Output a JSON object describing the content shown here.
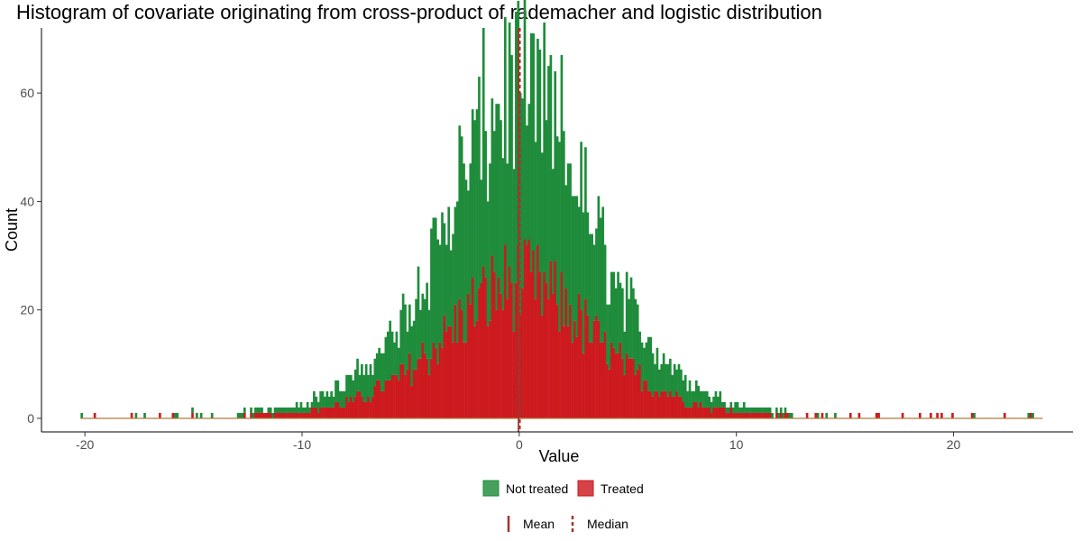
{
  "chart_data": {
    "type": "histogram",
    "title": "Histogram of covariate originating from cross-product of rademacher and logistic distribution",
    "xlabel": "Value",
    "ylabel": "Count",
    "xlim": [
      -22,
      25.5
    ],
    "ylim": [
      -2.5,
      72
    ],
    "x_ticks": [
      -20,
      -10,
      0,
      10,
      20
    ],
    "x_tick_labels": [
      "-20",
      "-10",
      "0",
      "10",
      "20"
    ],
    "y_ticks": [
      0,
      20,
      40,
      60
    ],
    "y_tick_labels": [
      "0",
      "20",
      "40",
      "60"
    ],
    "bin_width": 0.1,
    "data_range": [
      -20.2,
      24.1
    ],
    "grid": false,
    "stacked": true,
    "series": [
      {
        "name": "Not treated",
        "color": "#1e8c3a",
        "distribution": "logistic",
        "center": 0.0,
        "peak_count_per_bin": 36,
        "scale": 2.2
      },
      {
        "name": "Treated",
        "color": "#cc1a1f",
        "distribution": "logistic",
        "center": 0.0,
        "peak_count_per_bin": 25,
        "scale": 2.3
      }
    ],
    "stacked_peak_total": 67,
    "reference_lines": [
      {
        "name": "Mean",
        "value": 0.0,
        "style": "solid",
        "color": "#a0362a"
      },
      {
        "name": "Median",
        "value": 0.0,
        "style": "dashed",
        "color": "#a0362a"
      }
    ],
    "legend": {
      "position": "bottom",
      "fill_entries": [
        "Not treated",
        "Treated"
      ],
      "line_entries": [
        "Mean",
        "Median"
      ]
    }
  }
}
